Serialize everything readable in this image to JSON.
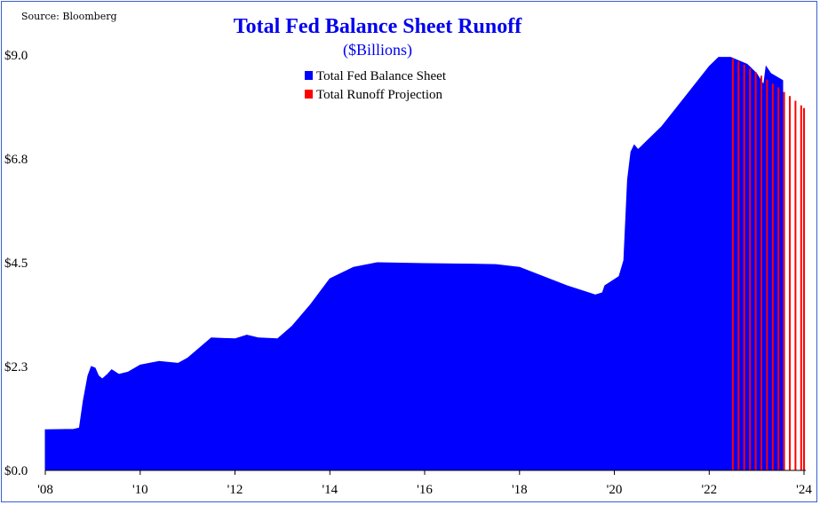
{
  "source": "Source: Bloomberg",
  "chart_data": {
    "type": "area",
    "title": "Total Fed Balance Sheet Runoff",
    "subtitle": "($Billions)",
    "xlabel": "",
    "ylabel": "",
    "xlim": [
      2008,
      2024
    ],
    "ylim": [
      0,
      9.0
    ],
    "y_ticks": [
      {
        "value": 0.0,
        "label": "$0.0"
      },
      {
        "value": 2.25,
        "label": "$2.3"
      },
      {
        "value": 4.5,
        "label": "$4.5"
      },
      {
        "value": 6.75,
        "label": "$6.8"
      },
      {
        "value": 9.0,
        "label": "$9.0"
      }
    ],
    "x_ticks": [
      {
        "value": 2008,
        "label": "'08"
      },
      {
        "value": 2010,
        "label": "'10"
      },
      {
        "value": 2012,
        "label": "'12"
      },
      {
        "value": 2014,
        "label": "'14"
      },
      {
        "value": 2016,
        "label": "'16"
      },
      {
        "value": 2018,
        "label": "'18"
      },
      {
        "value": 2020,
        "label": "'20"
      },
      {
        "value": 2022,
        "label": "'22"
      },
      {
        "value": 2024,
        "label": "'24"
      }
    ],
    "grid": false,
    "legend": "top-center",
    "series": [
      {
        "name": "Total Fed Balance Sheet",
        "color": "#0000ff",
        "kind": "area",
        "points": [
          [
            2008.0,
            0.88
          ],
          [
            2008.6,
            0.89
          ],
          [
            2008.72,
            0.92
          ],
          [
            2008.8,
            1.5
          ],
          [
            2008.9,
            2.05
          ],
          [
            2008.97,
            2.25
          ],
          [
            2009.05,
            2.22
          ],
          [
            2009.12,
            2.05
          ],
          [
            2009.2,
            1.98
          ],
          [
            2009.3,
            2.07
          ],
          [
            2009.4,
            2.18
          ],
          [
            2009.55,
            2.08
          ],
          [
            2009.75,
            2.13
          ],
          [
            2010.0,
            2.28
          ],
          [
            2010.4,
            2.36
          ],
          [
            2010.8,
            2.32
          ],
          [
            2011.0,
            2.43
          ],
          [
            2011.5,
            2.87
          ],
          [
            2012.0,
            2.85
          ],
          [
            2012.25,
            2.93
          ],
          [
            2012.5,
            2.87
          ],
          [
            2012.9,
            2.85
          ],
          [
            2013.2,
            3.12
          ],
          [
            2013.6,
            3.6
          ],
          [
            2014.0,
            4.15
          ],
          [
            2014.5,
            4.4
          ],
          [
            2015.0,
            4.5
          ],
          [
            2016.0,
            4.48
          ],
          [
            2017.0,
            4.47
          ],
          [
            2017.5,
            4.46
          ],
          [
            2018.0,
            4.4
          ],
          [
            2018.5,
            4.2
          ],
          [
            2019.0,
            4.0
          ],
          [
            2019.6,
            3.8
          ],
          [
            2019.75,
            3.85
          ],
          [
            2019.8,
            4.0
          ],
          [
            2020.1,
            4.2
          ],
          [
            2020.2,
            4.55
          ],
          [
            2020.28,
            6.3
          ],
          [
            2020.35,
            6.9
          ],
          [
            2020.42,
            7.05
          ],
          [
            2020.5,
            6.95
          ],
          [
            2021.0,
            7.45
          ],
          [
            2021.5,
            8.1
          ],
          [
            2022.0,
            8.75
          ],
          [
            2022.2,
            8.95
          ],
          [
            2022.45,
            8.95
          ],
          [
            2022.8,
            8.8
          ],
          [
            2023.0,
            8.6
          ],
          [
            2023.15,
            8.35
          ],
          [
            2023.2,
            8.75
          ],
          [
            2023.3,
            8.6
          ],
          [
            2023.55,
            8.45
          ]
        ]
      },
      {
        "name": "Total Runoff Projection",
        "color": "#ff0000",
        "kind": "bars",
        "points": [
          [
            2022.5,
            8.92
          ],
          [
            2022.62,
            8.86
          ],
          [
            2022.74,
            8.79
          ],
          [
            2022.86,
            8.71
          ],
          [
            2022.98,
            8.63
          ],
          [
            2023.1,
            8.55
          ],
          [
            2023.22,
            8.47
          ],
          [
            2023.34,
            8.38
          ],
          [
            2023.46,
            8.3
          ],
          [
            2023.58,
            8.2
          ],
          [
            2023.7,
            8.11
          ],
          [
            2023.82,
            8.01
          ],
          [
            2023.94,
            7.91
          ],
          [
            2024.0,
            7.85
          ]
        ]
      }
    ]
  }
}
